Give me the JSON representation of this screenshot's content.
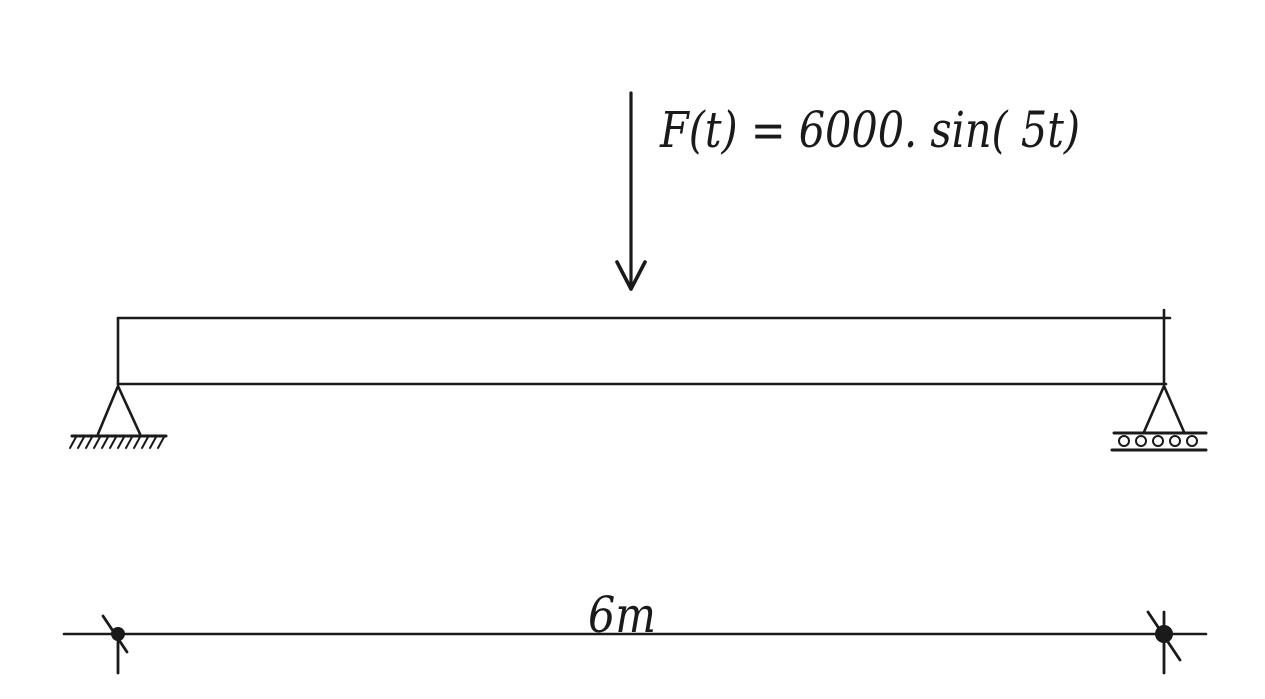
{
  "diagram": {
    "load": {
      "expression": "F(t) = 6000. sin( 5t)"
    },
    "dimension": {
      "span_label": "6m"
    },
    "supports": {
      "left": "pin-support",
      "right": "roller-support"
    },
    "colors": {
      "ink": "#1a1a1a",
      "background": "#ffffff"
    }
  }
}
